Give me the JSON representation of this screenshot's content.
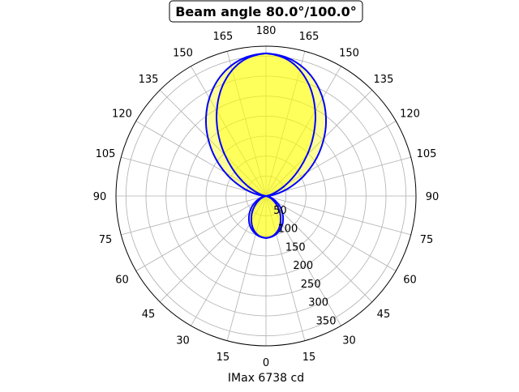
{
  "chart_data": {
    "type": "polar-line",
    "title": "Beam angle 80.0°/100.0°",
    "xlabel": "IMax 6738 cd",
    "angle_ticks": [
      0,
      15,
      30,
      45,
      60,
      75,
      90,
      105,
      120,
      135,
      150,
      165,
      180
    ],
    "angle_orientation": "0 at bottom, 180 at top, mirrored on both sides",
    "radial_ticks": [
      50,
      100,
      150,
      200,
      250,
      300,
      350
    ],
    "rlim": [
      0,
      375
    ],
    "grid": true,
    "gamma": [
      0,
      10,
      20,
      30,
      40,
      50,
      60,
      70,
      80,
      90,
      100,
      110,
      120,
      130,
      140,
      150,
      160,
      170,
      180
    ],
    "series": [
      {
        "values": [
          105,
          102,
          94,
          82,
          66,
          49,
          31,
          16,
          5,
          0,
          22,
          64,
          118,
          176,
          233,
          283,
          323,
          348,
          357
        ]
      },
      {
        "values": [
          105,
          101,
          90,
          73,
          54,
          35,
          19,
          7,
          1,
          0,
          4,
          22,
          59,
          113,
          179,
          246,
          304,
          343,
          357
        ]
      }
    ],
    "colors": {
      "line": "#0000ff",
      "fill": "#ffff00",
      "grid": "#b0b0b0",
      "frame": "#000000"
    }
  }
}
